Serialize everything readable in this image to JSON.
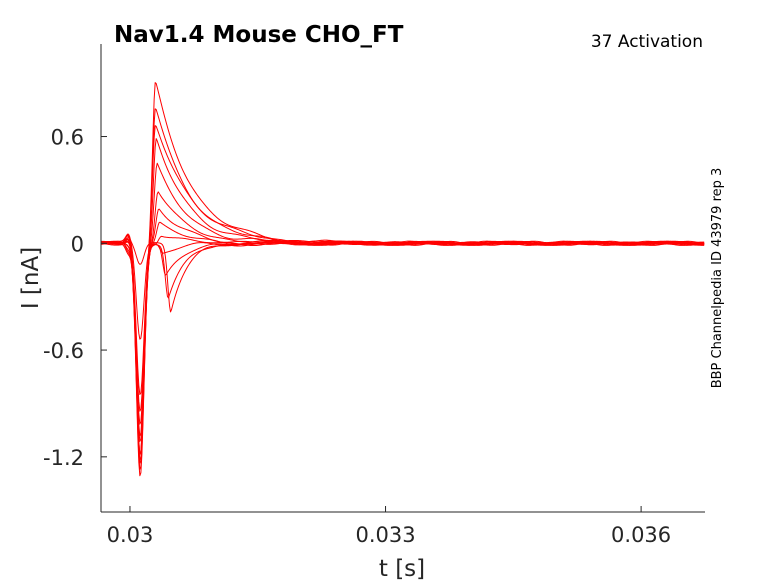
{
  "chart_data": {
    "type": "line",
    "title": "Nav1.4  Mouse  CHO_FT",
    "subtitle": "37  Activation",
    "side_label": "BBP Channelpedia ID 43979 rep 3",
    "xlabel": "t [s]",
    "ylabel": "I [nA]",
    "xlim": [
      0.02966,
      0.03675
    ],
    "ylim": [
      -1.51,
      1.12
    ],
    "xticks": [
      0.03,
      0.033,
      0.036
    ],
    "xtick_labels": [
      "0.03",
      "0.033",
      "0.036"
    ],
    "yticks": [
      -1.2,
      -0.6,
      0,
      0.6
    ],
    "ytick_labels": [
      "-1.2",
      "-0.6",
      "0",
      "0.6"
    ],
    "grid": false,
    "series_color": "#ff0000",
    "trace_params": {
      "neg_peaks": [
        -0.12,
        -0.55,
        -0.85,
        -1.02,
        -1.12,
        -1.18,
        -1.22,
        -1.27,
        -1.3,
        -1.24,
        -1.18,
        -1.08,
        -0.95
      ],
      "pos_peaks": [
        -0.38,
        -0.3,
        -0.18,
        -0.05,
        0.05,
        0.12,
        0.2,
        0.3,
        0.45,
        0.6,
        0.78,
        0.92,
        0.68
      ],
      "pos_times": [
        0.03048,
        0.03045,
        0.03042,
        0.03039,
        0.03037,
        0.03035,
        0.03034,
        0.03033,
        0.03032,
        0.03031,
        0.0303,
        0.0303,
        0.0303
      ]
    }
  }
}
